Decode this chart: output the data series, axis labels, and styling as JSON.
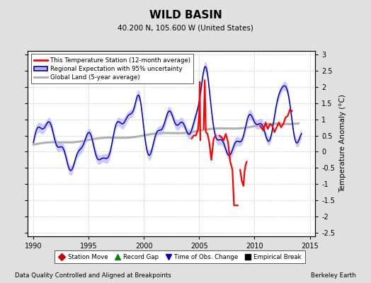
{
  "title": "WILD BASIN",
  "subtitle": "40.200 N, 105.600 W (United States)",
  "ylabel": "Temperature Anomaly (°C)",
  "xlabel_left": "Data Quality Controlled and Aligned at Breakpoints",
  "xlabel_right": "Berkeley Earth",
  "xlim": [
    1989.5,
    2015.5
  ],
  "ylim": [
    -2.6,
    3.1
  ],
  "yticks": [
    -2.5,
    -2.0,
    -1.5,
    -1.0,
    -0.5,
    0.0,
    0.5,
    1.0,
    1.5,
    2.0,
    2.5,
    3.0
  ],
  "xticks": [
    1990,
    1995,
    2000,
    2005,
    2010,
    2015
  ],
  "bg_color": "#e0e0e0",
  "plot_bg_color": "#ffffff",
  "red_color": "#ff0000",
  "blue_color": "#0000bb",
  "blue_fill_color": "#b0b0ff",
  "gray_color": "#b0b0b0",
  "legend_items": [
    "This Temperature Station (12-month average)",
    "Regional Expectation with 95% uncertainty",
    "Global Land (5-year average)"
  ],
  "bottom_legend": [
    {
      "label": "Station Move",
      "color": "#cc0000",
      "marker": "D"
    },
    {
      "label": "Record Gap",
      "color": "#008800",
      "marker": "^"
    },
    {
      "label": "Time of Obs. Change",
      "color": "#0000cc",
      "marker": "v"
    },
    {
      "label": "Empirical Break",
      "color": "#000000",
      "marker": "s"
    }
  ]
}
